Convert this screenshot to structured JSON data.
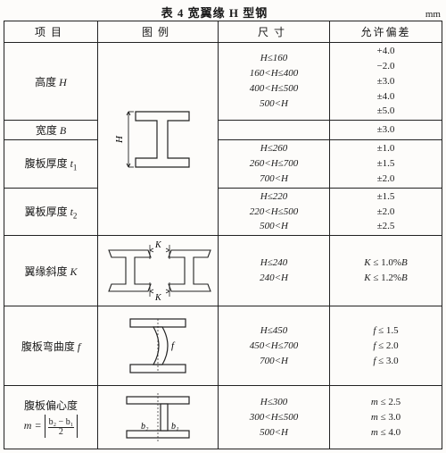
{
  "title": "表 4  宽翼缘 H 型钢",
  "unit": "mm",
  "headers": {
    "c1": "项目",
    "c2": "图例",
    "c3": "尺寸",
    "c4": "允许偏差"
  },
  "rows": {
    "height": {
      "label_zh": "高度 ",
      "label_var": "H",
      "sizes": [
        "H≤160",
        "160<H≤400",
        "400<H≤500",
        "500<H"
      ],
      "tols": [
        "+4.0",
        "−2.0",
        "±3.0",
        "±4.0",
        "±5.0"
      ]
    },
    "width": {
      "label_zh": "宽度 ",
      "label_var": "B",
      "sizes": [],
      "tols": [
        "±3.0"
      ]
    },
    "web_t": {
      "label_zh": "腹板厚度 ",
      "label_var": "t",
      "sub": "1",
      "sizes": [
        "H≤260",
        "260<H≤700",
        "700<H"
      ],
      "tols": [
        "±1.0",
        "±1.5",
        "±2.0"
      ]
    },
    "flange_t": {
      "label_zh": "翼板厚度 ",
      "label_var": "t",
      "sub": "2",
      "sizes": [
        "H≤220",
        "220<H≤500",
        "500<H"
      ],
      "tols": [
        "±1.5",
        "±2.0",
        "±2.5"
      ]
    },
    "flange_slope": {
      "label_zh": "翼缘斜度 ",
      "label_var": "K",
      "sizes": [
        "H≤240",
        "240<H"
      ],
      "tols_html": [
        "K ≤ 1.0%B",
        "K ≤ 1.2%B"
      ]
    },
    "web_bend": {
      "label_zh": "腹板弯曲度 ",
      "label_var": "f",
      "sizes": [
        "H≤450",
        "450<H≤700",
        "700<H"
      ],
      "tols_html": [
        "f ≤ 1.5",
        "f ≤ 2.0",
        "f ≤ 3.0"
      ]
    },
    "ecc": {
      "label_zh": "腹板偏心度",
      "formula_lhs": "m =",
      "formula_num": "b₂ − b₁",
      "formula_den": "2",
      "sizes": [
        "H≤300",
        "300<H≤500",
        "500<H"
      ],
      "tols_html": [
        "m ≤ 2.5",
        "m ≤ 3.0",
        "m ≤ 4.0"
      ]
    }
  },
  "style": {
    "stroke": "#222",
    "fill": "#fdfcfa",
    "dim_font": "10px Times New Roman"
  }
}
